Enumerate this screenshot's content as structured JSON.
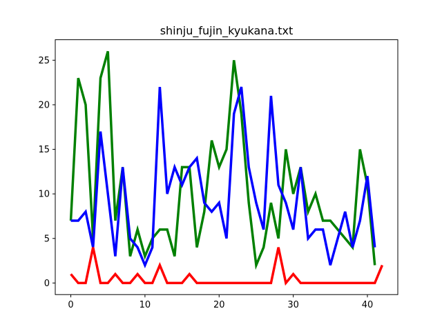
{
  "chart_data": {
    "type": "line",
    "title": "shinju_fujin_kyukana.txt",
    "xlabel": "",
    "ylabel": "",
    "xlim": [
      -2.1,
      44.1
    ],
    "ylim": [
      -1.3,
      27.3
    ],
    "xticks": [
      0,
      10,
      20,
      30,
      40
    ],
    "yticks": [
      0,
      5,
      10,
      15,
      20,
      25
    ],
    "grid": false,
    "series": [
      {
        "color": "#008000",
        "x": [
          0,
          1,
          2,
          3,
          4,
          5,
          6,
          7,
          8,
          9,
          10,
          11,
          12,
          13,
          14,
          15,
          16,
          17,
          18,
          19,
          20,
          21,
          22,
          23,
          24,
          25,
          26,
          27,
          28,
          29,
          30,
          31,
          32,
          33,
          34,
          35,
          36,
          37,
          38,
          39,
          40,
          41
        ],
        "values": [
          7,
          23,
          20,
          5,
          23,
          26,
          7,
          13,
          3,
          6,
          3,
          5,
          6,
          6,
          3,
          13,
          13,
          4,
          8,
          16,
          13,
          15,
          25,
          19,
          9,
          2,
          4,
          9,
          5,
          15,
          10,
          13,
          8,
          10,
          7,
          7,
          6,
          5,
          4,
          15,
          11,
          2
        ]
      },
      {
        "color": "#0000ff",
        "x": [
          0,
          1,
          2,
          3,
          4,
          5,
          6,
          7,
          8,
          9,
          10,
          11,
          12,
          13,
          14,
          15,
          16,
          17,
          18,
          19,
          20,
          21,
          22,
          23,
          24,
          25,
          26,
          27,
          28,
          29,
          30,
          31,
          32,
          33,
          34,
          35,
          36,
          37,
          38,
          39,
          40,
          41
        ],
        "values": [
          7,
          7,
          8,
          4,
          17,
          10,
          3,
          13,
          5,
          4,
          2,
          4,
          22,
          10,
          13,
          11,
          13,
          14,
          9,
          8,
          9,
          5,
          19,
          22,
          13,
          9,
          6,
          21,
          11,
          9,
          6,
          13,
          5,
          6,
          6,
          2,
          5,
          8,
          4,
          7,
          12,
          4
        ]
      },
      {
        "color": "#ff0000",
        "x": [
          0,
          1,
          2,
          3,
          4,
          5,
          6,
          7,
          8,
          9,
          10,
          11,
          12,
          13,
          14,
          15,
          16,
          17,
          18,
          19,
          20,
          21,
          22,
          23,
          24,
          25,
          26,
          27,
          28,
          29,
          30,
          31,
          32,
          33,
          34,
          35,
          36,
          37,
          38,
          39,
          40,
          41,
          42
        ],
        "values": [
          1,
          0,
          0,
          4,
          0,
          0,
          1,
          0,
          0,
          1,
          0,
          0,
          2,
          0,
          0,
          0,
          1,
          0,
          0,
          0,
          0,
          0,
          0,
          0,
          0,
          0,
          0,
          0,
          4,
          0,
          1,
          0,
          0,
          0,
          0,
          0,
          0,
          0,
          0,
          0,
          0,
          0,
          2
        ]
      }
    ]
  }
}
